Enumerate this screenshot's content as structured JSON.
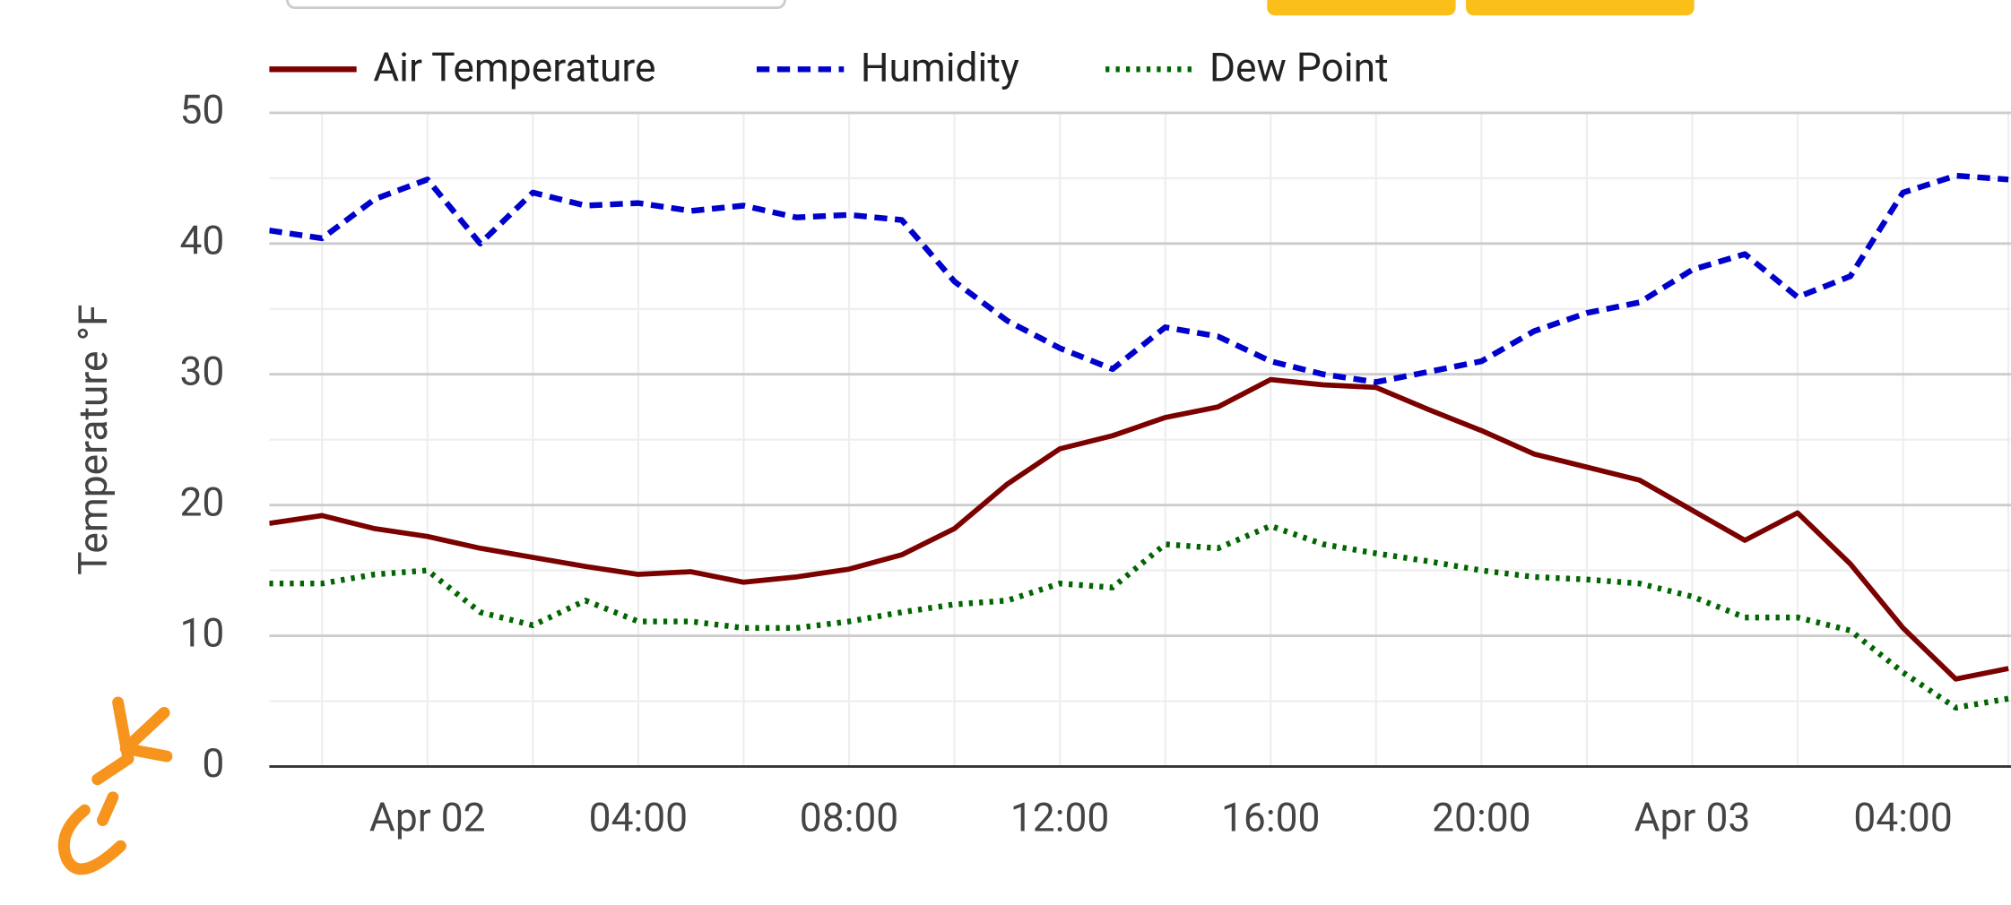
{
  "chart_data": {
    "type": "line",
    "y_label": "Temperature °F",
    "x": [
      "Apr 01 21:00",
      "Apr 01 22:00",
      "Apr 01 23:00",
      "Apr 02 00:00",
      "Apr 02 01:00",
      "Apr 02 02:00",
      "Apr 02 03:00",
      "Apr 02 04:00",
      "Apr 02 05:00",
      "Apr 02 06:00",
      "Apr 02 07:00",
      "Apr 02 08:00",
      "Apr 02 09:00",
      "Apr 02 10:00",
      "Apr 02 11:00",
      "Apr 02 12:00",
      "Apr 02 13:00",
      "Apr 02 14:00",
      "Apr 02 15:00",
      "Apr 02 16:00",
      "Apr 02 17:00",
      "Apr 02 18:00",
      "Apr 02 19:00",
      "Apr 02 20:00",
      "Apr 02 21:00",
      "Apr 02 22:00",
      "Apr 02 23:00",
      "Apr 03 00:00",
      "Apr 03 01:00",
      "Apr 03 02:00",
      "Apr 03 03:00",
      "Apr 03 04:00",
      "Apr 03 05:00",
      "Apr 03 06:00"
    ],
    "series": [
      {
        "name": "Air Temperature",
        "color": "#7b0000",
        "dash": "solid",
        "values": [
          18.6,
          19.2,
          18.2,
          17.6,
          16.7,
          16.0,
          15.3,
          14.7,
          14.9,
          14.1,
          14.5,
          15.1,
          16.2,
          18.2,
          21.6,
          24.3,
          25.3,
          26.7,
          27.5,
          29.6,
          29.2,
          29.0,
          27.3,
          25.7,
          23.9,
          22.9,
          21.9,
          19.6,
          17.3,
          19.4,
          15.5,
          10.6,
          6.7,
          7.5
        ]
      },
      {
        "name": "Humidity",
        "color": "#0000cc",
        "dash": "dashed",
        "values": [
          41.0,
          40.4,
          43.4,
          44.9,
          40.0,
          43.9,
          42.9,
          43.1,
          42.5,
          42.9,
          42.0,
          42.2,
          41.8,
          37.1,
          34.1,
          32.0,
          30.4,
          33.6,
          32.9,
          31.0,
          30.0,
          29.4,
          30.2,
          31.0,
          33.3,
          34.7,
          35.5,
          38.0,
          39.2,
          35.9,
          37.5,
          43.9,
          45.2,
          44.9
        ]
      },
      {
        "name": "Dew Point",
        "color": "#006600",
        "dash": "dotted",
        "values": [
          14.0,
          14.0,
          14.7,
          15.0,
          11.8,
          10.8,
          12.7,
          11.1,
          11.1,
          10.6,
          10.6,
          11.1,
          11.8,
          12.4,
          12.7,
          14.0,
          13.7,
          17.0,
          16.7,
          18.4,
          17.0,
          16.3,
          15.7,
          15.0,
          14.5,
          14.3,
          14.0,
          13.0,
          11.4,
          11.4,
          10.4,
          7.2,
          4.5,
          5.2
        ]
      }
    ],
    "xlim": [
      "Apr 01 21:00",
      "Apr 03 06:00"
    ],
    "xticks": [
      {
        "value": "Apr 02 00:00",
        "label": "Apr 02"
      },
      {
        "value": "Apr 02 04:00",
        "label": "04:00"
      },
      {
        "value": "Apr 02 08:00",
        "label": "08:00"
      },
      {
        "value": "Apr 02 12:00",
        "label": "12:00"
      },
      {
        "value": "Apr 02 16:00",
        "label": "16:00"
      },
      {
        "value": "Apr 02 20:00",
        "label": "20:00"
      },
      {
        "value": "Apr 03 00:00",
        "label": "Apr 03"
      },
      {
        "value": "Apr 03 04:00",
        "label": "04:00"
      }
    ],
    "ylim": [
      0,
      50
    ],
    "yticks": [
      0,
      10,
      20,
      30,
      40,
      50
    ],
    "grid": true,
    "legend": "top"
  }
}
